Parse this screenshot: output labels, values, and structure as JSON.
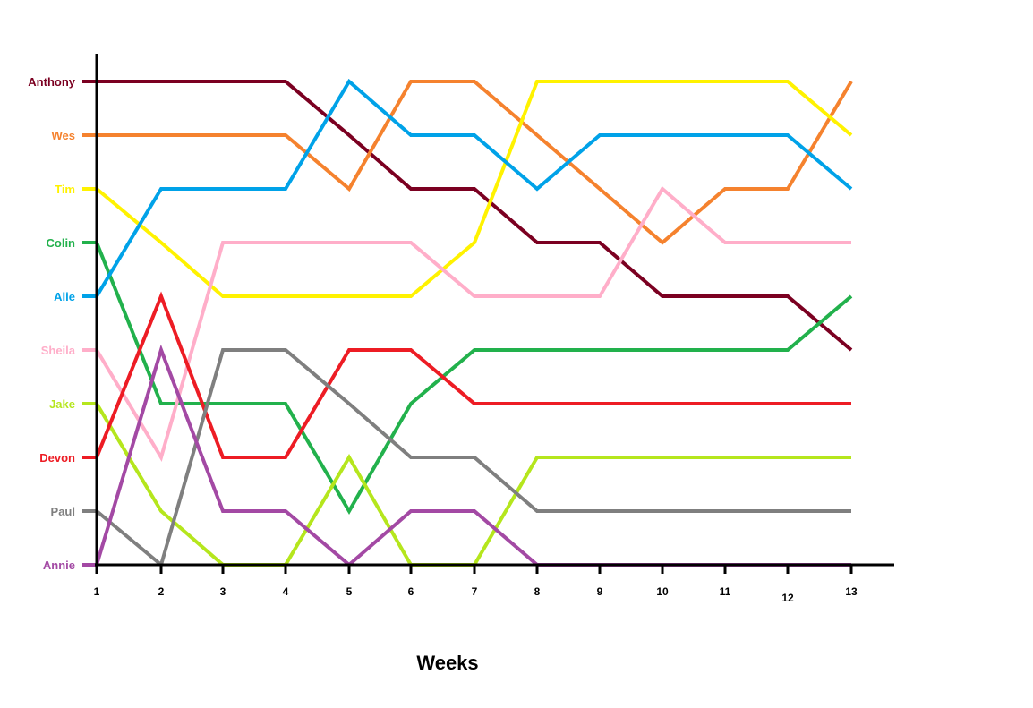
{
  "chart_data": {
    "type": "line",
    "title": "",
    "xlabel": "Weeks",
    "ylabel": "",
    "x": [
      1,
      2,
      3,
      4,
      5,
      6,
      7,
      8,
      9,
      10,
      11,
      12,
      13
    ],
    "y_categories": [
      "Anthony",
      "Wes",
      "Tim",
      "Colin",
      "Alie",
      "Sheila",
      "Jake",
      "Devon",
      "Paul",
      "Annie"
    ],
    "y_direction": "rank 1 at top, rank 10 at bottom",
    "grid": false,
    "legend": "none (series names shown as y-axis labels)",
    "series": [
      {
        "name": "Anthony",
        "color": "#7b0021",
        "values": [
          1,
          1,
          1,
          1,
          2,
          3,
          3,
          4,
          4,
          5,
          5,
          5,
          6
        ]
      },
      {
        "name": "Wes",
        "color": "#f5822e",
        "values": [
          2,
          2,
          2,
          2,
          3,
          1,
          1,
          2,
          3,
          4,
          3,
          3,
          1
        ]
      },
      {
        "name": "Tim",
        "color": "#fff200",
        "values": [
          3,
          4,
          5,
          5,
          5,
          5,
          4,
          1,
          1,
          1,
          1,
          1,
          2
        ]
      },
      {
        "name": "Colin",
        "color": "#22b14c",
        "values": [
          4,
          7,
          7,
          7,
          9,
          7,
          6,
          6,
          6,
          6,
          6,
          6,
          5
        ]
      },
      {
        "name": "Alie",
        "color": "#00a2e8",
        "values": [
          5,
          3,
          3,
          3,
          1,
          2,
          2,
          3,
          2,
          2,
          2,
          2,
          3
        ]
      },
      {
        "name": "Sheila",
        "color": "#ffaec9",
        "values": [
          6,
          8,
          4,
          4,
          4,
          4,
          5,
          5,
          5,
          3,
          4,
          4,
          4
        ]
      },
      {
        "name": "Jake",
        "color": "#b5e61d",
        "values": [
          7,
          9,
          10,
          10,
          8,
          10,
          10,
          8,
          8,
          8,
          8,
          8,
          8
        ]
      },
      {
        "name": "Devon",
        "color": "#ed1c24",
        "values": [
          8,
          5,
          8,
          8,
          6,
          6,
          7,
          7,
          7,
          7,
          7,
          7,
          7
        ]
      },
      {
        "name": "Paul",
        "color": "#7f7f7f",
        "values": [
          9,
          10,
          6,
          6,
          7,
          8,
          8,
          9,
          9,
          9,
          9,
          9,
          9
        ]
      },
      {
        "name": "Annie",
        "color": "#a349a4",
        "values": [
          10,
          6,
          9,
          9,
          10,
          9,
          9,
          10,
          10,
          10,
          10,
          10,
          10
        ]
      }
    ]
  }
}
